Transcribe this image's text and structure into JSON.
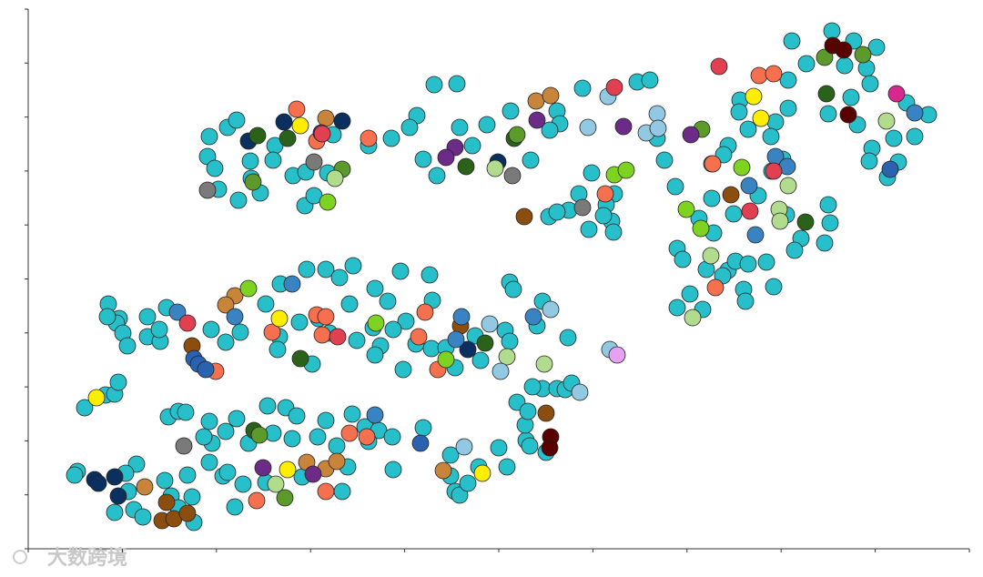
{
  "chart_data": {
    "type": "scatter",
    "xlim": [
      0,
      1034
    ],
    "ylim": [
      0,
      593
    ],
    "xticks": [
      0,
      103.4,
      206.8,
      310.2,
      413.6,
      517,
      620.4,
      723.8,
      827.2,
      930.6,
      1034
    ],
    "yticks": [
      0,
      59.3,
      118.6,
      177.9,
      237.2,
      296.5,
      355.8,
      415.1,
      474.4,
      533.7,
      593
    ],
    "watermark": "大数跨境",
    "series": [
      {
        "color": "#27bfca",
        "x": [
          199,
          219,
          229,
          197,
          205,
          209,
          231,
          244,
          255,
          271,
          269,
          291,
          305,
          304,
          314,
          329,
          335,
          245,
          374,
          399,
          427,
          419,
          434,
          449,
          446,
          471,
          474,
          488,
          504,
          530,
          552,
          581,
          584,
          573,
          609,
          669,
          683,
          691,
          699,
          711,
          839,
          883,
          907,
          932,
          855,
          897,
          921,
          925,
          904,
          879,
          835,
          835,
          821,
          816,
          911,
          927,
          924,
          944,
          956,
          951,
          974,
          989,
          965,
          782,
          781,
          791,
          769,
          764,
          751,
          751,
          775,
          802,
          829,
          817,
          833,
          879,
          881,
          875,
          849,
          842,
          769,
          763,
          777,
          791,
          811,
          786,
          788,
          819,
          727,
          713,
          741,
          753,
          737,
          713,
          719,
          745,
          572,
          594,
          605,
          619,
          644,
          635,
          641,
          616,
          643,
          632,
          581,
          88,
          100,
          97,
          87,
          104,
          109,
          131,
          131,
          145,
          144,
          152,
          201,
          217,
          233,
          261,
          277,
          306,
          327,
          342,
          357,
          381,
          395,
          409,
          441,
          353,
          379,
          361,
          387,
          381,
          412,
          426,
          443,
          459,
          469,
          497,
          529,
          533,
          565,
          559,
          593,
          524,
          529,
          491,
          444,
          415,
          401,
          331,
          312,
          276,
          274,
          298,
          319,
          154,
          165,
          173,
          199,
          229,
          263,
          283,
          295,
          327,
          356,
          370,
          385,
          400,
          374,
          339,
          318,
          290,
          269,
          242,
          217,
          202,
          193,
          199,
          119,
          107,
          54,
          51,
          116,
          126,
          95,
          110,
          150,
          175,
          182,
          180,
          157,
          165,
          214,
          219,
          227,
          236,
          261,
          301,
          351,
          345,
          401,
          434,
          464,
          464,
          469,
          474,
          483,
          495,
          517,
          526,
          547,
          551,
          546,
          537,
          549,
          565,
          569,
          554,
          581,
          590,
          597,
          62,
          85,
          95,
          99
        ],
        "values": [
          453,
          463,
          471,
          431,
          418,
          395,
          383,
          426,
          391,
          443,
          427,
          410,
          414,
          377,
          388,
          413,
          455,
          407,
          443,
          451,
          476,
          463,
          428,
          410,
          510,
          511,
          463,
          443,
          466,
          481,
          427,
          481,
          467,
          460,
          506,
          513,
          515,
          451,
          427,
          398,
          558,
          569,
          558,
          551,
          533,
          531,
          528,
          511,
          496,
          478,
          515,
          484,
          469,
          453,
          466,
          440,
          426,
          408,
          425,
          451,
          453,
          477,
          490,
          493,
          480,
          461,
          443,
          433,
          423,
          385,
          368,
          388,
          428,
          415,
          367,
          378,
          358,
          336,
          341,
          328,
          306,
          300,
          316,
          313,
          315,
          285,
          272,
          288,
          280,
          265,
          263,
          347,
          363,
          330,
          318,
          307,
          365,
          372,
          390,
          413,
          390,
          378,
          360,
          351,
          348,
          366,
          370,
          269,
          253,
          248,
          255,
          237,
          223,
          255,
          233,
          228,
          241,
          265,
          241,
          227,
          238,
          269,
          291,
          307,
          307,
          298,
          311,
          286,
          272,
          305,
          301,
          269,
          243,
          229,
          223,
          213,
          197,
          225,
          220,
          221,
          199,
          207,
          293,
          285,
          272,
          245,
          232,
          240,
          228,
          234,
          273,
          250,
          241,
          237,
          203,
          233,
          219,
          249,
          253,
          145,
          151,
          150,
          140,
          143,
          157,
          155,
          146,
          141,
          148,
          134,
          130,
          123,
          118,
          113,
          123,
          121,
          127,
          116,
          129,
          116,
          123,
          95,
          93,
          83,
          85,
          81,
          43,
          35,
          40,
          63,
          75,
          81,
          29,
          57,
          58,
          45,
          80,
          84,
          46,
          71,
          73,
          79,
          90,
          63,
          87,
          133,
          103,
          80,
          63,
          59,
          72,
          90,
          111,
          90,
          119,
          113,
          136,
          161,
          151,
          176,
          106,
          178,
          176,
          175,
          182,
          155,
          169,
          170,
          183
        ]
      },
      {
        "color": "#f4704f",
        "x": [
          295,
          317,
          374,
          634,
          752,
          803,
          819,
          755,
          317,
          327,
          323,
          268,
          251,
          327,
          353,
          372,
          436,
          429,
          450,
          206
        ],
        "values": [
          483,
          448,
          451,
          390,
          423,
          520,
          522,
          287,
          257,
          255,
          235,
          238,
          53,
          63,
          127,
          123,
          260,
          233,
          197,
          195
        ]
      },
      {
        "color": "#c8843a",
        "x": [
          327,
          558,
          574,
          227,
          217,
          128,
          456,
          306,
          327,
          339
        ],
        "values": [
          473,
          492,
          498,
          278,
          268,
          68,
          86,
          95,
          88,
          96
        ]
      },
      {
        "color": "#8b4e0e",
        "x": [
          545,
          772,
          180,
          147,
          160,
          175,
          152,
          569,
          475
        ],
        "values": [
          365,
          389,
          223,
          31,
          33,
          39,
          51,
          149,
          245
        ]
      },
      {
        "color": "#0b2f5e",
        "x": [
          281,
          242,
          345,
          516,
          483,
          73,
          77,
          95,
          99
        ],
        "values": [
          469,
          448,
          470,
          425,
          219,
          76,
          72,
          79,
          58
        ]
      },
      {
        "color": "#2a6219",
        "x": [
          252,
          285,
          481,
          534,
          877,
          854,
          299,
          502,
          248
        ],
        "values": [
          454,
          451,
          420,
          451,
          500,
          359,
          209,
          226,
          130
        ]
      },
      {
        "color": "#5c9b2b",
        "x": [
          345,
          247,
          537,
          740,
          875,
          917,
          254,
          282
        ],
        "values": [
          417,
          403,
          455,
          461,
          540,
          543,
          125,
          56
        ]
      },
      {
        "color": "#7ed321",
        "x": [
          329,
          644,
          657,
          784,
          723,
          739,
          242,
          382,
          459
        ],
        "values": [
          381,
          411,
          416,
          419,
          373,
          352,
          286,
          248,
          208
        ]
      },
      {
        "color": "#b1dc8e",
        "x": [
          337,
          513,
          943,
          835,
          825,
          826,
          750,
          730,
          526,
          567,
          272
        ],
        "values": [
          407,
          418,
          470,
          399,
          373,
          360,
          322,
          254,
          211,
          203,
          71
        ]
      },
      {
        "color": "#ffee00",
        "x": [
          299,
          797,
          805,
          276,
          285,
          499,
          75
        ],
        "values": [
          465,
          497,
          473,
          253,
          87,
          83,
          166
        ]
      },
      {
        "color": "#6b2b86",
        "x": [
          322,
          469,
          459,
          559,
          654,
          728,
          258,
          313
        ],
        "values": [
          457,
          441,
          430,
          471,
          464,
          455,
          89,
          82
        ]
      },
      {
        "color": "#7a7a7a",
        "x": [
          197,
          314,
          532,
          171,
          609
        ],
        "values": [
          394,
          425,
          410,
          113,
          375
        ]
      },
      {
        "color": "#93c8e2",
        "x": [
          615,
          637,
          691,
          679,
          692,
          507,
          639,
          519,
          479,
          574,
          606
        ],
        "values": [
          463,
          497,
          478,
          457,
          462,
          247,
          219,
          195,
          112,
          263,
          172
        ]
      },
      {
        "color": "#3a83c3",
        "x": [
          164,
          227,
          290,
          555,
          792,
          799,
          821,
          834,
          381,
          974,
          476,
          470
        ],
        "values": [
          260,
          255,
          291,
          255,
          399,
          345,
          431,
          420,
          147,
          479,
          255,
          230
        ]
      },
      {
        "color": "#2a62b0",
        "x": [
          182,
          187,
          195,
          431,
          947
        ],
        "values": [
          209,
          203,
          197,
          116,
          417
        ]
      },
      {
        "color": "#590000",
        "x": [
          884,
          896,
          901,
          574,
          573
        ],
        "values": [
          553,
          548,
          477,
          123,
          111
        ]
      },
      {
        "color": "#e04050",
        "x": [
          644,
          759,
          819,
          793,
          175,
          340,
          323
        ],
        "values": [
          507,
          530,
          415,
          371,
          248,
          233,
          456
        ]
      },
      {
        "color": "#d82890",
        "x": [
          954
        ],
        "values": [
          500
        ]
      },
      {
        "color": "#e8a0f0",
        "x": [
          647
        ],
        "values": [
          213
        ]
      }
    ]
  }
}
